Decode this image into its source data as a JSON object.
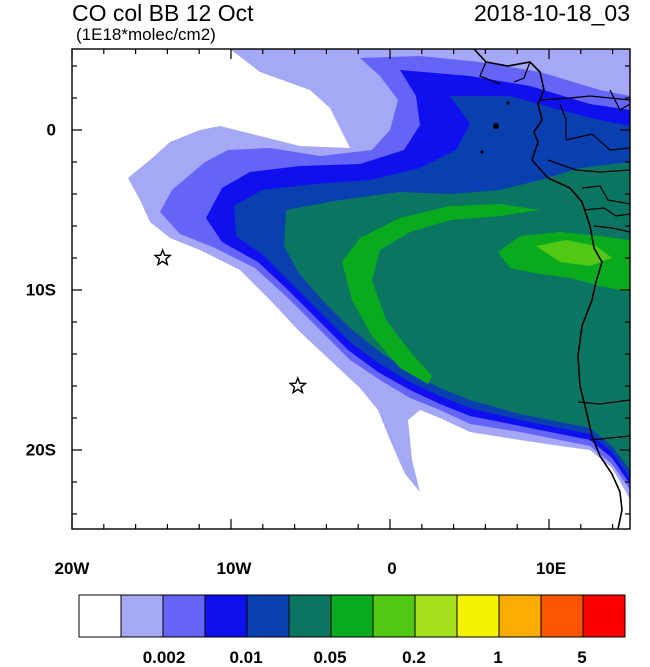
{
  "title": "CO col BB 12 Oct",
  "units": "(1E18*molec/cm2)",
  "datetime": "2018-10-18_03",
  "axes": {
    "lon_labels": [
      "20W",
      "10W",
      "0",
      "10E"
    ],
    "lat_labels": [
      "0",
      "10S",
      "20S"
    ]
  },
  "colorbar": {
    "colors": [
      "#ffffff",
      "#a5a8f5",
      "#6464f7",
      "#1010ee",
      "#0a3fb0",
      "#0a7560",
      "#0aaa1e",
      "#50c814",
      "#a6e11e",
      "#f4f400",
      "#fbac00",
      "#fb5500",
      "#fb0000"
    ],
    "labels": [
      "0.002",
      "0.01",
      "0.05",
      "0.2",
      "1",
      "5"
    ]
  },
  "markers": [
    {
      "name": "star-marker-1",
      "lon": -14.3,
      "lat": -8.0
    },
    {
      "name": "star-marker-2",
      "lon": -5.8,
      "lat": -16.0
    }
  ]
}
